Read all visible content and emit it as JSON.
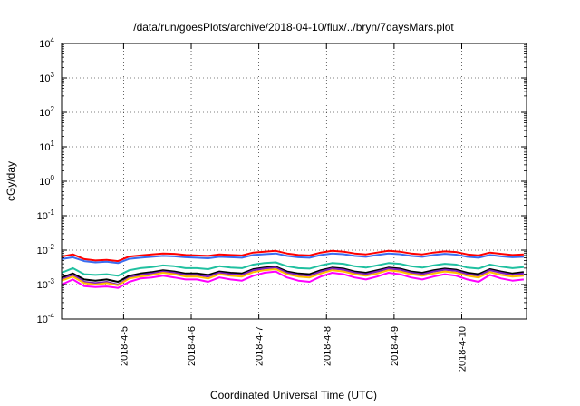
{
  "chart_data": {
    "type": "line",
    "title": "/data/run/goesPlots/archive/2018-04-10/flux/../bryn/7daysMars.plot",
    "xlabel": "Coordinated Universal Time (UTC)",
    "ylabel": "cGy/day",
    "yscale": "log",
    "ylim": [
      0.0001,
      10000
    ],
    "xlim": [
      "2018-04-04T02:00",
      "2018-04-10T23:00"
    ],
    "grid": true,
    "x_ticks": [
      "2018-4-5",
      "2018-4-6",
      "2018-4-7",
      "2018-4-8",
      "2018-4-9",
      "2018-4-10"
    ],
    "y_ticks": [
      {
        "base": "10",
        "exp": "-4"
      },
      {
        "base": "10",
        "exp": "-3"
      },
      {
        "base": "10",
        "exp": "-2"
      },
      {
        "base": "10",
        "exp": "-1"
      },
      {
        "base": "10",
        "exp": "0"
      },
      {
        "base": "10",
        "exp": "1"
      },
      {
        "base": "10",
        "exp": "2"
      },
      {
        "base": "10",
        "exp": "3"
      },
      {
        "base": "10",
        "exp": "4"
      }
    ],
    "x": [
      "2018-04-04T02:00",
      "2018-04-04T06:00",
      "2018-04-04T10:00",
      "2018-04-04T14:00",
      "2018-04-04T18:00",
      "2018-04-04T22:00",
      "2018-04-05T02:00",
      "2018-04-05T06:00",
      "2018-04-05T10:00",
      "2018-04-05T14:00",
      "2018-04-05T18:00",
      "2018-04-05T22:00",
      "2018-04-06T02:00",
      "2018-04-06T06:00",
      "2018-04-06T10:00",
      "2018-04-06T14:00",
      "2018-04-06T18:00",
      "2018-04-06T22:00",
      "2018-04-07T02:00",
      "2018-04-07T06:00",
      "2018-04-07T10:00",
      "2018-04-07T14:00",
      "2018-04-07T18:00",
      "2018-04-07T22:00",
      "2018-04-08T02:00",
      "2018-04-08T06:00",
      "2018-04-08T10:00",
      "2018-04-08T14:00",
      "2018-04-08T18:00",
      "2018-04-08T22:00",
      "2018-04-09T02:00",
      "2018-04-09T06:00",
      "2018-04-09T10:00",
      "2018-04-09T14:00",
      "2018-04-09T18:00",
      "2018-04-09T22:00",
      "2018-04-10T02:00",
      "2018-04-10T06:00",
      "2018-04-10T10:00",
      "2018-04-10T14:00",
      "2018-04-10T18:00",
      "2018-04-10T22:00"
    ],
    "series": [
      {
        "color": "#ff0000",
        "values": [
          0.0065,
          0.0075,
          0.0055,
          0.005,
          0.0052,
          0.0048,
          0.0065,
          0.007,
          0.0075,
          0.008,
          0.0078,
          0.0072,
          0.007,
          0.0068,
          0.0075,
          0.0072,
          0.007,
          0.0085,
          0.009,
          0.0095,
          0.008,
          0.0072,
          0.007,
          0.0085,
          0.0095,
          0.009,
          0.008,
          0.0075,
          0.0085,
          0.0095,
          0.009,
          0.008,
          0.0075,
          0.0085,
          0.0092,
          0.0088,
          0.0075,
          0.007,
          0.0085,
          0.0078,
          0.0072,
          0.0075
        ]
      },
      {
        "color": "#3a6cf0",
        "values": [
          0.0055,
          0.0062,
          0.0048,
          0.0044,
          0.0046,
          0.0042,
          0.0056,
          0.006,
          0.0064,
          0.0068,
          0.0066,
          0.0062,
          0.006,
          0.0058,
          0.0064,
          0.0062,
          0.006,
          0.0072,
          0.0076,
          0.008,
          0.0068,
          0.0062,
          0.006,
          0.0072,
          0.008,
          0.0076,
          0.0068,
          0.0064,
          0.0072,
          0.008,
          0.0076,
          0.0068,
          0.0064,
          0.0072,
          0.0078,
          0.0074,
          0.0064,
          0.006,
          0.0072,
          0.0066,
          0.0062,
          0.0064
        ]
      },
      {
        "color": "#20c0a0",
        "values": [
          0.0022,
          0.003,
          0.002,
          0.0019,
          0.002,
          0.0018,
          0.0026,
          0.003,
          0.0032,
          0.0036,
          0.0034,
          0.003,
          0.003,
          0.0028,
          0.0034,
          0.0031,
          0.003,
          0.0038,
          0.0042,
          0.0044,
          0.0034,
          0.003,
          0.0029,
          0.0036,
          0.0042,
          0.004,
          0.0034,
          0.0031,
          0.0036,
          0.0042,
          0.004,
          0.0034,
          0.0031,
          0.0036,
          0.004,
          0.0038,
          0.0031,
          0.0029,
          0.0038,
          0.0033,
          0.003,
          0.0032
        ]
      },
      {
        "color": "#000000",
        "values": [
          0.0016,
          0.0021,
          0.0014,
          0.0013,
          0.0014,
          0.0012,
          0.0018,
          0.0021,
          0.0023,
          0.0026,
          0.0024,
          0.0021,
          0.0021,
          0.0019,
          0.0024,
          0.0022,
          0.0021,
          0.0028,
          0.0031,
          0.0033,
          0.0024,
          0.0021,
          0.002,
          0.0026,
          0.0031,
          0.0029,
          0.0024,
          0.0022,
          0.0026,
          0.0031,
          0.0029,
          0.0024,
          0.0022,
          0.0026,
          0.0029,
          0.0027,
          0.0022,
          0.002,
          0.0028,
          0.0024,
          0.0021,
          0.0023
        ]
      },
      {
        "color": "#8020c0",
        "values": [
          0.0014,
          0.0019,
          0.0012,
          0.0011,
          0.0012,
          0.001,
          0.0016,
          0.0019,
          0.0021,
          0.0024,
          0.0022,
          0.0019,
          0.0019,
          0.0017,
          0.0022,
          0.002,
          0.0019,
          0.0026,
          0.0029,
          0.0031,
          0.0022,
          0.0019,
          0.0018,
          0.0024,
          0.0029,
          0.0027,
          0.0022,
          0.002,
          0.0024,
          0.0029,
          0.0027,
          0.0022,
          0.002,
          0.0024,
          0.0027,
          0.0025,
          0.002,
          0.0018,
          0.0026,
          0.0022,
          0.0019,
          0.0021
        ]
      },
      {
        "color": "#ffc000",
        "values": [
          0.0013,
          0.0017,
          0.0011,
          0.001,
          0.0011,
          0.00095,
          0.0015,
          0.0017,
          0.0019,
          0.0022,
          0.002,
          0.0017,
          0.0017,
          0.0015,
          0.002,
          0.0018,
          0.0017,
          0.0023,
          0.0026,
          0.0028,
          0.002,
          0.0017,
          0.0016,
          0.0021,
          0.0026,
          0.0024,
          0.002,
          0.0018,
          0.0021,
          0.0026,
          0.0024,
          0.002,
          0.0018,
          0.0021,
          0.0024,
          0.0022,
          0.0018,
          0.0016,
          0.0023,
          0.0019,
          0.0017,
          0.0018
        ]
      },
      {
        "color": "#ff00ff",
        "values": [
          0.001,
          0.0014,
          0.0009,
          0.00085,
          0.00088,
          0.0008,
          0.0012,
          0.0015,
          0.0016,
          0.0018,
          0.0016,
          0.0014,
          0.0014,
          0.0012,
          0.0016,
          0.0014,
          0.0013,
          0.0018,
          0.0022,
          0.0024,
          0.0016,
          0.0013,
          0.0012,
          0.0017,
          0.0022,
          0.002,
          0.0016,
          0.0014,
          0.0017,
          0.0022,
          0.002,
          0.0016,
          0.0014,
          0.0017,
          0.002,
          0.0018,
          0.0014,
          0.0012,
          0.0019,
          0.0015,
          0.0013,
          0.0014
        ]
      }
    ]
  }
}
